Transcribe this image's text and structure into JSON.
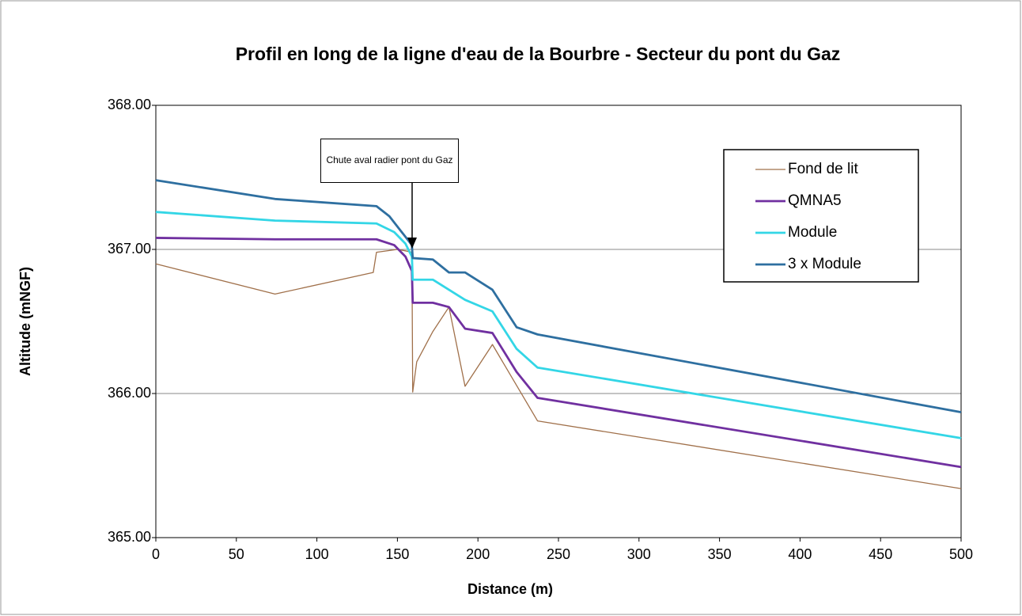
{
  "chart_data": {
    "type": "line",
    "title": "Profil en long de la ligne d'eau de la Bourbre - Secteur du pont du Gaz",
    "x_label": "Distance (m)",
    "y_label": "Altitude (mNGF)",
    "xlim": [
      0,
      500
    ],
    "xticks": [
      0,
      50,
      100,
      150,
      200,
      250,
      300,
      350,
      400,
      450,
      500
    ],
    "ylim": [
      365,
      368
    ],
    "yticks": [
      {
        "value": 365,
        "label": "365.00"
      },
      {
        "value": 366,
        "label": "366.00"
      },
      {
        "value": 367,
        "label": "367.00"
      },
      {
        "value": 368,
        "label": "368.00"
      }
    ],
    "grid": true,
    "legend": "upper right",
    "annotation": "Chute aval radier pont du Gaz",
    "series": [
      {
        "name": "Fond de lit",
        "color": "#a0704a",
        "x": [
          0,
          74,
          135,
          137,
          150,
          155,
          159,
          159.5,
          162,
          172,
          182,
          192,
          209,
          237,
          500
        ],
        "values": [
          366.9,
          366.69,
          366.84,
          366.98,
          367.0,
          366.99,
          366.98,
          366.01,
          366.22,
          366.43,
          366.6,
          366.05,
          366.34,
          365.81,
          365.34
        ]
      },
      {
        "name": "QMNA5",
        "color": "#7030a0",
        "x": [
          0,
          74,
          137,
          148,
          155,
          159,
          159.5,
          172,
          182,
          192,
          209,
          224,
          237,
          500
        ],
        "values": [
          367.08,
          367.07,
          367.07,
          367.03,
          366.95,
          366.85,
          366.63,
          366.63,
          366.6,
          366.45,
          366.42,
          366.15,
          365.97,
          365.49
        ]
      },
      {
        "name": " Module",
        "color": "#33d6e6",
        "x": [
          0,
          74,
          137,
          148,
          155,
          159,
          159.5,
          172,
          182,
          192,
          209,
          224,
          237,
          500
        ],
        "values": [
          367.26,
          367.2,
          367.18,
          367.12,
          367.04,
          366.95,
          366.79,
          366.79,
          366.72,
          366.65,
          366.57,
          366.31,
          366.18,
          365.69
        ]
      },
      {
        "name": "3 x Module",
        "color": "#2e6fa0",
        "x": [
          0,
          74,
          137,
          145,
          152,
          159,
          159.5,
          172,
          182,
          192,
          209,
          224,
          237,
          500
        ],
        "values": [
          367.48,
          367.35,
          367.3,
          367.23,
          367.13,
          367.03,
          366.94,
          366.93,
          366.84,
          366.84,
          366.72,
          366.46,
          366.41,
          365.87
        ]
      }
    ]
  }
}
